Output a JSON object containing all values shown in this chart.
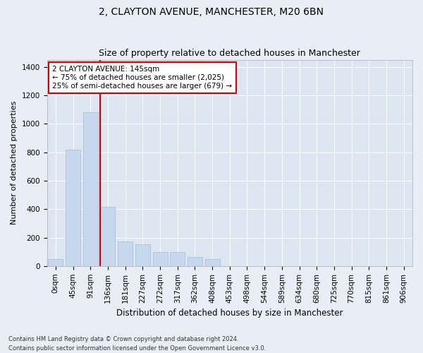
{
  "title": "2, CLAYTON AVENUE, MANCHESTER, M20 6BN",
  "subtitle": "Size of property relative to detached houses in Manchester",
  "xlabel": "Distribution of detached houses by size in Manchester",
  "ylabel": "Number of detached properties",
  "categories": [
    "0sqm",
    "45sqm",
    "91sqm",
    "136sqm",
    "181sqm",
    "227sqm",
    "272sqm",
    "317sqm",
    "362sqm",
    "408sqm",
    "453sqm",
    "498sqm",
    "544sqm",
    "589sqm",
    "634sqm",
    "680sqm",
    "725sqm",
    "770sqm",
    "815sqm",
    "861sqm",
    "906sqm"
  ],
  "values": [
    50,
    820,
    1080,
    415,
    175,
    155,
    100,
    100,
    65,
    50,
    0,
    0,
    0,
    0,
    0,
    0,
    0,
    0,
    0,
    0,
    0
  ],
  "bar_color": "#c5d8ee",
  "bar_edge_color": "#a0bcd8",
  "vline_x_index": 3,
  "vline_color": "#cc0000",
  "annotation_text": "2 CLAYTON AVENUE: 145sqm\n← 75% of detached houses are smaller (2,025)\n25% of semi-detached houses are larger (679) →",
  "annotation_box_facecolor": "#ffffff",
  "annotation_box_edgecolor": "#cc0000",
  "ylim": [
    0,
    1450
  ],
  "yticks": [
    0,
    200,
    400,
    600,
    800,
    1000,
    1200,
    1400
  ],
  "bg_color": "#e8eef5",
  "plot_bg_color": "#dde6f0",
  "grid_color": "#ffffff",
  "footnote": "Contains HM Land Registry data © Crown copyright and database right 2024.\nContains public sector information licensed under the Open Government Licence v3.0.",
  "title_fontsize": 10,
  "subtitle_fontsize": 9,
  "xlabel_fontsize": 8.5,
  "ylabel_fontsize": 8,
  "tick_fontsize": 7.5,
  "annot_fontsize": 7.5,
  "footnote_fontsize": 6
}
